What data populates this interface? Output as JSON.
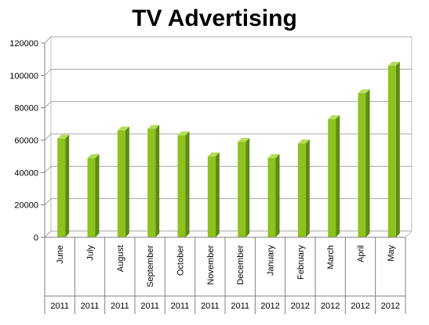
{
  "chart_data": {
    "type": "bar",
    "title": "TV Advertising",
    "categories": [
      "June",
      "July",
      "August",
      "September",
      "October",
      "November",
      "December",
      "January",
      "February",
      "March",
      "April",
      "May"
    ],
    "years": [
      "2011",
      "2011",
      "2011",
      "2011",
      "2011",
      "2011",
      "2011",
      "2012",
      "2012",
      "2012",
      "2012",
      "2012"
    ],
    "series": [
      {
        "values": [
          61000,
          49000,
          66000,
          67000,
          63000,
          50000,
          59000,
          49000,
          58000,
          73000,
          89000,
          106000
        ]
      }
    ],
    "ylim": [
      0,
      120000
    ],
    "yticks": [
      "0",
      "20000",
      "40000",
      "60000",
      "80000",
      "100000",
      "120000"
    ],
    "xlabel": "",
    "ylabel": "",
    "grid": true,
    "bar_color": "#8dc21f",
    "bar_side_color": "#5e8a10",
    "bar_top_color": "#b5dd5a"
  }
}
